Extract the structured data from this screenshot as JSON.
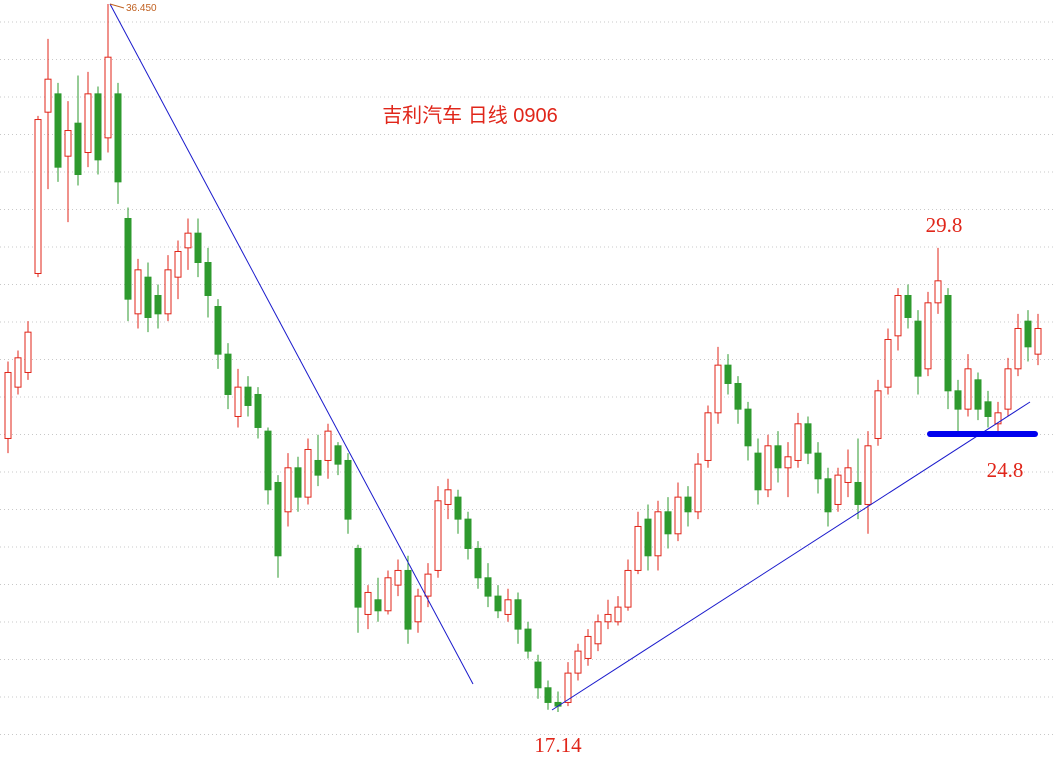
{
  "chart_data": {
    "type": "candlestick",
    "title": "吉利汽车  日线  0906",
    "peak_label": "36.450",
    "annotations": [
      "29.8",
      "24.8",
      "17.14"
    ],
    "up_color": "#e0261a",
    "down_color": "#2e9a2e",
    "ylim": [
      15.53,
      36.56
    ],
    "ohlc": [
      [
        24.6,
        26.7,
        24.2,
        26.4
      ],
      [
        26.0,
        27.0,
        25.8,
        26.8
      ],
      [
        26.4,
        27.8,
        26.2,
        27.5
      ],
      [
        29.1,
        33.4,
        29.0,
        33.3
      ],
      [
        33.5,
        35.5,
        31.4,
        34.4
      ],
      [
        34.0,
        34.3,
        31.6,
        32.0
      ],
      [
        32.3,
        33.8,
        30.5,
        33.0
      ],
      [
        33.2,
        34.5,
        31.5,
        31.8
      ],
      [
        32.4,
        34.6,
        32.0,
        34.0
      ],
      [
        34.0,
        34.2,
        31.8,
        32.2
      ],
      [
        32.8,
        36.45,
        32.4,
        35.0
      ],
      [
        34.0,
        34.3,
        31.0,
        31.6
      ],
      [
        30.6,
        30.9,
        27.8,
        28.4
      ],
      [
        28.0,
        29.5,
        27.6,
        29.2
      ],
      [
        29.0,
        29.4,
        27.5,
        27.9
      ],
      [
        28.5,
        28.8,
        27.6,
        28.0
      ],
      [
        28.0,
        29.6,
        27.8,
        29.2
      ],
      [
        29.0,
        30.0,
        28.4,
        29.7
      ],
      [
        29.8,
        30.6,
        29.2,
        30.2
      ],
      [
        30.2,
        30.6,
        29.0,
        29.4
      ],
      [
        29.4,
        29.8,
        27.9,
        28.5
      ],
      [
        28.2,
        28.4,
        26.5,
        26.9
      ],
      [
        26.9,
        27.2,
        25.4,
        25.8
      ],
      [
        25.2,
        26.5,
        24.9,
        26.0
      ],
      [
        26.0,
        26.3,
        25.2,
        25.5
      ],
      [
        25.8,
        26.0,
        24.6,
        24.9
      ],
      [
        24.8,
        24.9,
        22.8,
        23.2
      ],
      [
        23.4,
        23.6,
        20.8,
        21.4
      ],
      [
        22.6,
        24.2,
        22.2,
        23.8
      ],
      [
        23.8,
        24.1,
        22.6,
        23.0
      ],
      [
        23.0,
        24.6,
        22.8,
        24.3
      ],
      [
        24.0,
        24.7,
        23.3,
        23.6
      ],
      [
        24.0,
        25.0,
        23.5,
        24.8
      ],
      [
        24.4,
        24.5,
        23.6,
        23.9
      ],
      [
        24.0,
        24.2,
        22.0,
        22.4
      ],
      [
        21.6,
        21.7,
        19.3,
        20.0
      ],
      [
        19.8,
        20.6,
        19.4,
        20.4
      ],
      [
        20.2,
        20.8,
        19.6,
        19.9
      ],
      [
        19.9,
        21.0,
        19.8,
        20.8
      ],
      [
        20.6,
        21.3,
        20.3,
        21.0
      ],
      [
        21.0,
        21.4,
        19.0,
        19.4
      ],
      [
        19.6,
        20.5,
        19.3,
        20.3
      ],
      [
        20.3,
        21.2,
        20.0,
        20.9
      ],
      [
        21.0,
        23.3,
        20.8,
        22.9
      ],
      [
        22.8,
        23.5,
        22.4,
        23.2
      ],
      [
        23.0,
        23.2,
        22.0,
        22.4
      ],
      [
        22.4,
        22.6,
        21.3,
        21.6
      ],
      [
        21.6,
        21.8,
        20.5,
        20.8
      ],
      [
        20.8,
        21.2,
        20.0,
        20.3
      ],
      [
        20.3,
        20.6,
        19.7,
        19.9
      ],
      [
        19.8,
        20.5,
        19.6,
        20.2
      ],
      [
        20.2,
        20.4,
        19.0,
        19.4
      ],
      [
        19.4,
        19.6,
        18.6,
        18.8
      ],
      [
        18.5,
        18.7,
        17.5,
        17.8
      ],
      [
        17.8,
        18.0,
        17.2,
        17.4
      ],
      [
        17.4,
        17.7,
        17.14,
        17.3
      ],
      [
        17.4,
        18.5,
        17.3,
        18.2
      ],
      [
        18.2,
        19.0,
        18.0,
        18.8
      ],
      [
        18.6,
        19.4,
        18.4,
        19.2
      ],
      [
        19.0,
        19.8,
        18.8,
        19.6
      ],
      [
        19.6,
        20.2,
        19.4,
        19.8
      ],
      [
        19.6,
        20.3,
        19.5,
        20.0
      ],
      [
        20.0,
        21.3,
        19.9,
        21.0
      ],
      [
        21.0,
        22.6,
        20.9,
        22.2
      ],
      [
        22.4,
        22.8,
        21.0,
        21.4
      ],
      [
        21.4,
        22.9,
        21.0,
        22.6
      ],
      [
        22.6,
        23.0,
        21.6,
        22.0
      ],
      [
        22.0,
        23.4,
        21.8,
        23.0
      ],
      [
        23.0,
        23.3,
        22.2,
        22.6
      ],
      [
        22.6,
        24.2,
        22.4,
        23.9
      ],
      [
        24.0,
        25.5,
        23.8,
        25.3
      ],
      [
        25.3,
        27.1,
        25.0,
        26.6
      ],
      [
        26.6,
        26.9,
        25.8,
        26.1
      ],
      [
        26.1,
        26.3,
        25.0,
        25.4
      ],
      [
        25.4,
        25.6,
        24.0,
        24.4
      ],
      [
        24.2,
        24.6,
        22.8,
        23.2
      ],
      [
        23.2,
        24.7,
        23.0,
        24.4
      ],
      [
        24.4,
        24.8,
        23.4,
        23.8
      ],
      [
        23.8,
        24.5,
        23.0,
        24.1
      ],
      [
        24.0,
        25.3,
        23.8,
        25.0
      ],
      [
        25.0,
        25.2,
        23.9,
        24.2
      ],
      [
        24.2,
        24.5,
        23.1,
        23.5
      ],
      [
        23.5,
        23.8,
        22.2,
        22.6
      ],
      [
        22.8,
        23.8,
        22.6,
        23.6
      ],
      [
        23.4,
        24.3,
        23.0,
        23.8
      ],
      [
        23.4,
        24.6,
        22.4,
        22.8
      ],
      [
        22.8,
        24.8,
        22.0,
        24.4
      ],
      [
        24.6,
        26.2,
        24.4,
        25.9
      ],
      [
        26.0,
        27.6,
        25.8,
        27.3
      ],
      [
        27.4,
        28.7,
        27.0,
        28.5
      ],
      [
        28.5,
        28.8,
        27.6,
        27.9
      ],
      [
        27.8,
        28.1,
        25.8,
        26.3
      ],
      [
        26.5,
        28.6,
        26.3,
        28.3
      ],
      [
        28.3,
        29.8,
        28.0,
        28.9
      ],
      [
        28.5,
        28.7,
        25.4,
        25.9
      ],
      [
        25.9,
        26.2,
        24.8,
        25.4
      ],
      [
        25.4,
        26.9,
        25.2,
        26.5
      ],
      [
        26.2,
        26.4,
        25.1,
        25.4
      ],
      [
        25.6,
        25.9,
        24.9,
        25.2
      ],
      [
        25.0,
        25.6,
        24.8,
        25.3
      ],
      [
        25.4,
        26.8,
        25.2,
        26.5
      ],
      [
        26.5,
        28.0,
        26.3,
        27.6
      ],
      [
        27.8,
        28.1,
        26.7,
        27.1
      ],
      [
        26.9,
        28.0,
        26.6,
        27.6
      ]
    ]
  }
}
